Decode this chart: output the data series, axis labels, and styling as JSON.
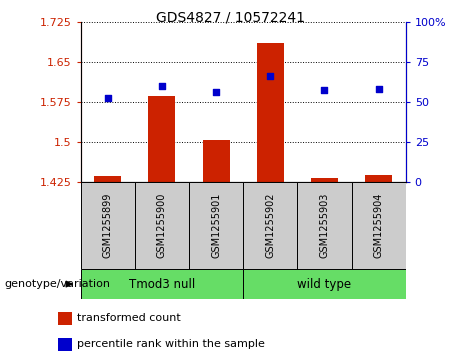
{
  "title": "GDS4827 / 10572241",
  "samples": [
    "GSM1255899",
    "GSM1255900",
    "GSM1255901",
    "GSM1255902",
    "GSM1255903",
    "GSM1255904"
  ],
  "bar_values": [
    1.435,
    1.585,
    1.503,
    1.685,
    1.432,
    1.437
  ],
  "dot_values": [
    52,
    60,
    56,
    66,
    57,
    58
  ],
  "ylim_left": [
    1.425,
    1.725
  ],
  "ylim_right": [
    0,
    100
  ],
  "yticks_left": [
    1.425,
    1.5,
    1.575,
    1.65,
    1.725
  ],
  "ytick_labels_left": [
    "1.425",
    "1.5",
    "1.575",
    "1.65",
    "1.725"
  ],
  "yticks_right": [
    0,
    25,
    50,
    75,
    100
  ],
  "ytick_labels_right": [
    "0",
    "25",
    "50",
    "75",
    "100%"
  ],
  "bar_color": "#cc2200",
  "dot_color": "#0000cc",
  "group1_label": "Tmod3 null",
  "group2_label": "wild type",
  "group_color": "#66dd66",
  "sample_box_color": "#cccccc",
  "xlabel_left": "genotype/variation",
  "legend_bar_label": "transformed count",
  "legend_dot_label": "percentile rank within the sample",
  "bar_width": 0.5,
  "base_value": 1.425,
  "fig_width": 4.61,
  "fig_height": 3.63,
  "dpi": 100
}
